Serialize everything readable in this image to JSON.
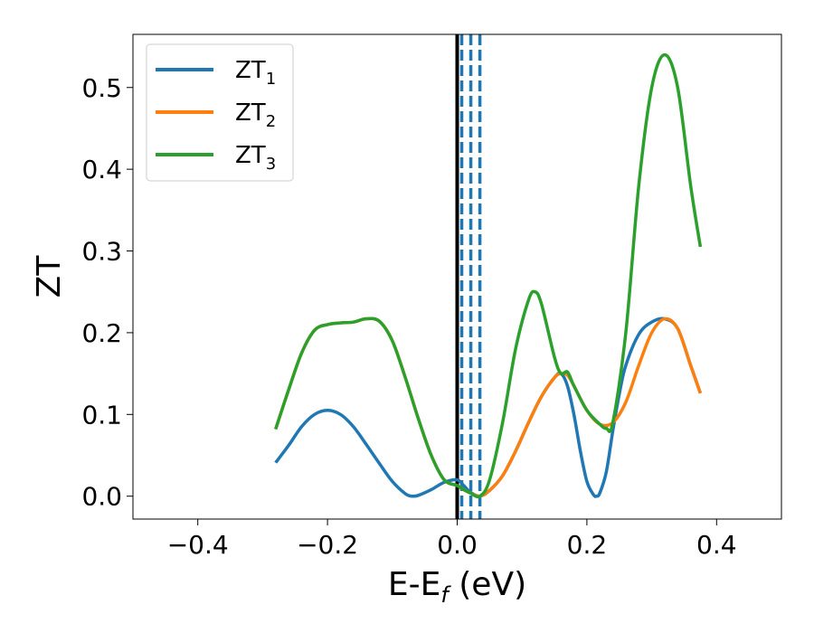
{
  "chart_data": {
    "type": "line",
    "xlabel": "E-E",
    "xlabel_sub": "f",
    "xlabel_unit": " (eV)",
    "ylabel": "ZT",
    "xlim": [
      -0.5,
      0.5
    ],
    "ylim": [
      -0.028,
      0.565
    ],
    "xticks": [
      -0.4,
      -0.2,
      0.0,
      0.2,
      0.4
    ],
    "xtick_labels": [
      "−0.4",
      "−0.2",
      "0.0",
      "0.2",
      "0.4"
    ],
    "yticks": [
      0.0,
      0.1,
      0.2,
      0.3,
      0.4,
      0.5
    ],
    "ytick_labels": [
      "0.0",
      "0.1",
      "0.2",
      "0.3",
      "0.4",
      "0.5"
    ],
    "grid": false,
    "legend_position": "top-left",
    "colors": {
      "zt1": "#1f77b4",
      "zt2": "#ff7f0e",
      "zt3": "#2ca02c",
      "vline_solid": "#000000",
      "vline_dashed": "#1f77b4"
    },
    "vlines": [
      {
        "x": 0.0,
        "style": "solid",
        "color": "#000000"
      },
      {
        "x": 0.007,
        "style": "dashed",
        "color": "#1f77b4"
      },
      {
        "x": 0.021,
        "style": "dashed",
        "color": "#1f77b4"
      },
      {
        "x": 0.035,
        "style": "dashed",
        "color": "#1f77b4"
      }
    ],
    "series": [
      {
        "name": "ZT",
        "name_sub": "1",
        "color": "#1f77b4",
        "x": [
          -0.28,
          -0.26,
          -0.24,
          -0.22,
          -0.2,
          -0.18,
          -0.16,
          -0.14,
          -0.12,
          -0.1,
          -0.08,
          -0.07,
          -0.06,
          -0.04,
          -0.02,
          0.0,
          0.01,
          0.02,
          0.035,
          0.05,
          0.07,
          0.09,
          0.11,
          0.13,
          0.15,
          0.16,
          0.17,
          0.18,
          0.19,
          0.2,
          0.21,
          0.215,
          0.22,
          0.23,
          0.24,
          0.25,
          0.26,
          0.28,
          0.3,
          0.32,
          0.34,
          0.36,
          0.375
        ],
        "y": [
          0.041,
          0.062,
          0.085,
          0.1,
          0.105,
          0.1,
          0.085,
          0.063,
          0.04,
          0.018,
          0.003,
          0.0,
          0.001,
          0.008,
          0.017,
          0.02,
          0.013,
          0.005,
          0.0,
          0.007,
          0.025,
          0.055,
          0.09,
          0.122,
          0.145,
          0.15,
          0.135,
          0.1,
          0.055,
          0.018,
          0.002,
          0.0,
          0.004,
          0.03,
          0.08,
          0.125,
          0.16,
          0.198,
          0.213,
          0.217,
          0.205,
          0.16,
          0.126
        ]
      },
      {
        "name": "ZT",
        "name_sub": "2",
        "color": "#ff7f0e",
        "x": [
          -0.28,
          -0.26,
          -0.24,
          -0.22,
          -0.2,
          -0.18,
          -0.16,
          -0.14,
          -0.12,
          -0.1,
          -0.08,
          -0.06,
          -0.04,
          -0.02,
          0.0,
          0.01,
          0.02,
          0.035,
          0.05,
          0.07,
          0.09,
          0.11,
          0.13,
          0.15,
          0.16,
          0.17,
          0.18,
          0.2,
          0.22,
          0.24,
          0.26,
          0.28,
          0.3,
          0.32,
          0.34,
          0.36,
          0.375
        ],
        "y": [
          0.082,
          0.13,
          0.175,
          0.203,
          0.21,
          0.212,
          0.213,
          0.217,
          0.214,
          0.19,
          0.145,
          0.095,
          0.05,
          0.02,
          0.013,
          0.008,
          0.004,
          0.0,
          0.007,
          0.025,
          0.055,
          0.09,
          0.122,
          0.145,
          0.15,
          0.148,
          0.135,
          0.105,
          0.088,
          0.09,
          0.115,
          0.16,
          0.2,
          0.217,
          0.205,
          0.16,
          0.126
        ]
      },
      {
        "name": "ZT",
        "name_sub": "3",
        "color": "#2ca02c",
        "x": [
          -0.28,
          -0.26,
          -0.24,
          -0.22,
          -0.2,
          -0.18,
          -0.16,
          -0.14,
          -0.12,
          -0.1,
          -0.08,
          -0.06,
          -0.04,
          -0.02,
          0.0,
          0.01,
          0.02,
          0.035,
          0.05,
          0.07,
          0.09,
          0.11,
          0.12,
          0.13,
          0.15,
          0.16,
          0.17,
          0.18,
          0.2,
          0.22,
          0.23,
          0.24,
          0.26,
          0.28,
          0.3,
          0.32,
          0.34,
          0.36,
          0.375
        ],
        "y": [
          0.082,
          0.13,
          0.175,
          0.203,
          0.21,
          0.212,
          0.213,
          0.217,
          0.214,
          0.19,
          0.145,
          0.095,
          0.05,
          0.02,
          0.013,
          0.008,
          0.004,
          0.0,
          0.02,
          0.09,
          0.18,
          0.24,
          0.25,
          0.235,
          0.17,
          0.15,
          0.152,
          0.135,
          0.105,
          0.088,
          0.083,
          0.09,
          0.2,
          0.38,
          0.5,
          0.54,
          0.5,
          0.38,
          0.305
        ]
      }
    ]
  }
}
